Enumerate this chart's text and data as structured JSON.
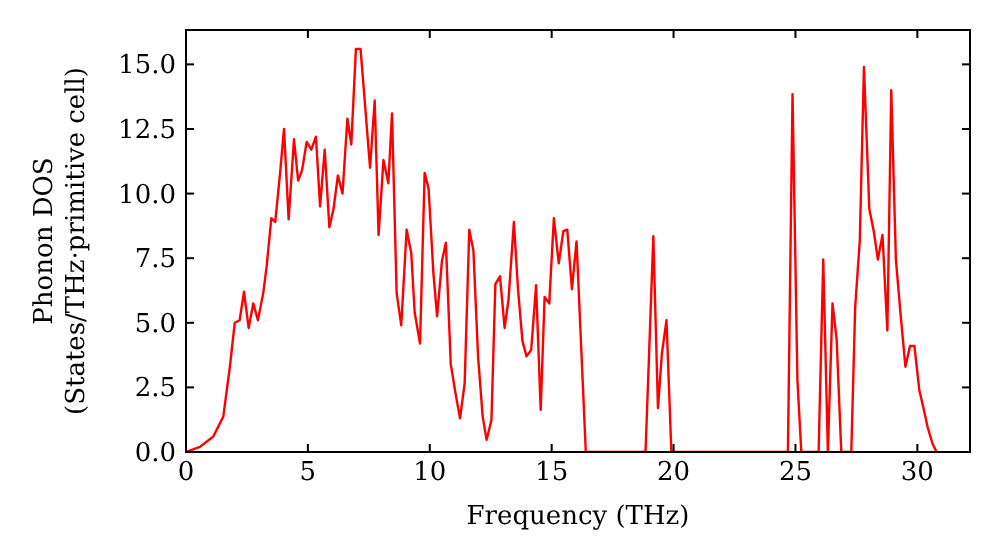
{
  "chart_data": {
    "type": "line",
    "xlabel": "Frequency (THz)",
    "ylabel": "Phonon DOS\n(States/THz·primitive cell)",
    "xlim": [
      0,
      32.16
    ],
    "ylim": [
      0,
      16.33
    ],
    "xticks": [
      0,
      5,
      10,
      15,
      20,
      25,
      30
    ],
    "yticks": [
      {
        "value": 0,
        "label": "0.0"
      },
      2.5,
      {
        "value": 5,
        "label": "5.0"
      },
      7.5,
      {
        "value": 10,
        "label": "10.0"
      },
      12.5,
      {
        "value": 15,
        "label": "15.0"
      }
    ],
    "grid": false,
    "line_style": "solid",
    "marker": "none",
    "series": [
      {
        "color": "#ff0000",
        "x": [
          0,
          0.57,
          1.12,
          1.53,
          1.8,
          2.0,
          2.2,
          2.38,
          2.57,
          2.76,
          2.95,
          3.17,
          3.31,
          3.5,
          3.66,
          3.86,
          4.02,
          4.21,
          4.43,
          4.6,
          4.76,
          4.95,
          5.14,
          5.33,
          5.5,
          5.69,
          5.88,
          6.05,
          6.23,
          6.42,
          6.62,
          6.78,
          6.97,
          7.16,
          7.55,
          7.74,
          7.9,
          8.1,
          8.3,
          8.45,
          8.64,
          8.83,
          9.05,
          9.24,
          9.38,
          9.6,
          9.79,
          9.95,
          10.15,
          10.3,
          10.5,
          10.66,
          10.86,
          11.05,
          11.24,
          11.43,
          11.62,
          11.79,
          11.98,
          12.17,
          12.33,
          12.53,
          12.69,
          12.88,
          13.07,
          13.23,
          13.45,
          13.62,
          13.8,
          13.97,
          14.16,
          14.36,
          14.55,
          14.71,
          14.9,
          15.09,
          15.29,
          15.48,
          15.64,
          15.83,
          16.02,
          16.4,
          18.85,
          19.17,
          19.36,
          19.52,
          19.71,
          19.91,
          24.69,
          24.88,
          25.08,
          25.24,
          25.95,
          26.14,
          26.33,
          26.52,
          26.69,
          26.88,
          27.29,
          27.45,
          27.64,
          27.81,
          28.03,
          28.22,
          28.38,
          28.57,
          28.77,
          28.93,
          29.12,
          29.31,
          29.51,
          29.7,
          29.88,
          30.08,
          30.24,
          30.43,
          30.62,
          30.79
        ],
        "values": [
          0,
          0.2,
          0.6,
          1.37,
          3.3,
          5.0,
          5.1,
          6.2,
          4.8,
          5.75,
          5.1,
          6.15,
          7.2,
          9.05,
          8.9,
          10.8,
          12.5,
          9.0,
          12.1,
          10.5,
          10.9,
          12.0,
          11.7,
          12.2,
          9.5,
          11.7,
          8.7,
          9.4,
          10.7,
          10.0,
          12.9,
          11.9,
          15.6,
          15.6,
          11.0,
          13.6,
          8.4,
          11.3,
          10.4,
          13.1,
          6.15,
          4.9,
          8.6,
          7.7,
          5.4,
          4.2,
          10.8,
          10.2,
          6.9,
          5.25,
          7.4,
          8.1,
          3.4,
          2.3,
          1.3,
          2.65,
          8.6,
          7.8,
          3.7,
          1.37,
          0.47,
          1.24,
          6.5,
          6.8,
          4.8,
          5.9,
          8.9,
          6.3,
          4.3,
          3.7,
          3.95,
          6.45,
          1.63,
          6.0,
          5.75,
          9.05,
          7.3,
          8.55,
          8.6,
          6.3,
          8.15,
          0,
          0,
          8.35,
          1.7,
          3.8,
          5.1,
          0,
          0,
          13.85,
          2.8,
          0,
          0,
          7.45,
          0,
          5.75,
          4.35,
          0,
          0,
          5.6,
          8.2,
          14.9,
          9.4,
          8.5,
          7.45,
          8.4,
          4.7,
          14.0,
          7.45,
          5.35,
          3.3,
          4.1,
          4.1,
          2.4,
          1.75,
          0.93,
          0.33,
          0
        ]
      }
    ]
  }
}
